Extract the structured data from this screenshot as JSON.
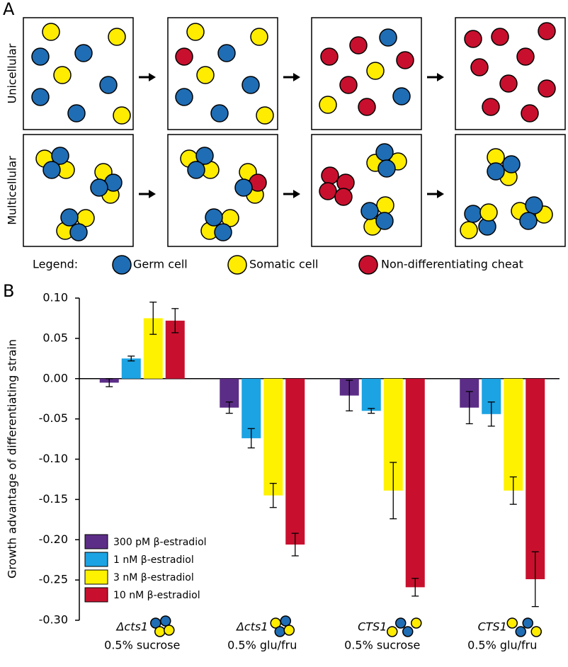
{
  "panel_labels": [
    "A",
    "B"
  ],
  "diagram": {
    "row_labels": [
      "Unicellular",
      "Multicellular"
    ],
    "legend": {
      "title": "Legend:",
      "items": [
        "Germ cell",
        "Somatic cell",
        "Non-differentiating cheat"
      ]
    }
  },
  "chart_data": {
    "type": "bar",
    "ylabel": "Growth advantage of differentiating strain",
    "categories": [
      "Δcts1",
      "Δcts1",
      "CTS1",
      "CTS1"
    ],
    "category_sublabels": [
      "0.5% sucrose",
      "0.5% glu/fru",
      "0.5% sucrose",
      "0.5% glu/fru"
    ],
    "ylim": [
      -0.3,
      0.1
    ],
    "yticks": [
      {
        "value": 0.1,
        "label": "0.10"
      },
      {
        "value": 0.05,
        "label": "0.05"
      },
      {
        "value": 0,
        "label": "0.00"
      },
      {
        "value": -0.05,
        "label": "-0.05"
      },
      {
        "value": -0.1,
        "label": "-0.10"
      },
      {
        "value": -0.15,
        "label": "-0.15"
      },
      {
        "value": -0.2,
        "label": "-0.20"
      },
      {
        "value": -0.25,
        "label": "-0.25"
      },
      {
        "value": -0.3,
        "label": "-0.30"
      }
    ],
    "legend_position": "lower left",
    "series": [
      {
        "name": "300 pM β-estradiol",
        "color": "#5c2d87",
        "values": [
          -0.005,
          -0.036,
          -0.021,
          -0.036
        ],
        "errors": [
          0.005,
          0.007,
          0.019,
          0.02
        ]
      },
      {
        "name": "1 nM β-estradiol",
        "color": "#1ca3e3",
        "values": [
          0.025,
          -0.074,
          -0.04,
          -0.044
        ],
        "errors": [
          0.003,
          0.012,
          0.003,
          0.015
        ]
      },
      {
        "name": "3 nM β-estradiol",
        "color": "#fff200",
        "values": [
          0.075,
          -0.145,
          -0.139,
          -0.139
        ],
        "errors": [
          0.02,
          0.015,
          0.035,
          0.017
        ]
      },
      {
        "name": "10 nM β-estradiol",
        "color": "#c8102e",
        "values": [
          0.072,
          -0.206,
          -0.259,
          -0.249
        ],
        "errors": [
          0.015,
          0.014,
          0.011,
          0.034
        ]
      }
    ]
  }
}
